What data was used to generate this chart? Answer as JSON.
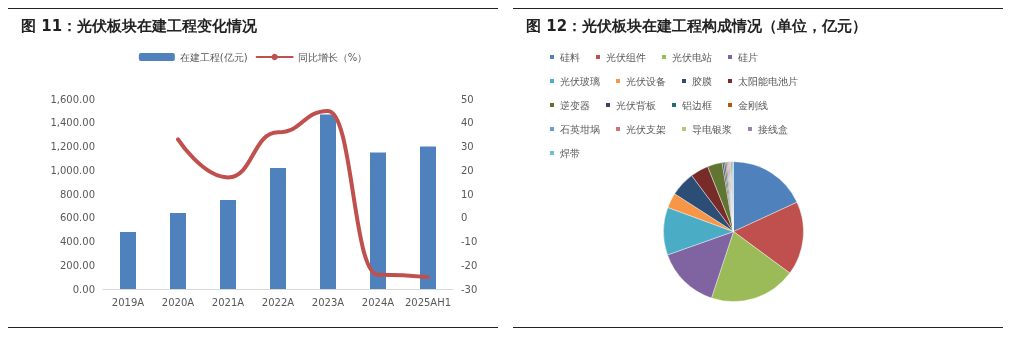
{
  "chart_data": [
    {
      "type": "bar",
      "title": "图 11：光伏板块在建工程变化情况",
      "categories": [
        "2019A",
        "2020A",
        "2021A",
        "2022A",
        "2023A",
        "2024A",
        "2025AH1"
      ],
      "series": [
        {
          "name": "在建工程(亿元)",
          "type": "bar",
          "color": "#4f81bd",
          "values": [
            480,
            640,
            750,
            1020,
            1470,
            1150,
            1200
          ]
        },
        {
          "name": "同比增长（%）",
          "type": "line",
          "axis": "y2",
          "color": "#c0504d",
          "values": [
            null,
            33,
            17,
            36,
            45,
            -24,
            -25
          ]
        }
      ],
      "ylim": [
        0,
        1600
      ],
      "yticks": [
        {
          "value": 0,
          "label": "0.00"
        },
        {
          "value": 200,
          "label": "200.00"
        },
        {
          "value": 400,
          "label": "400.00"
        },
        {
          "value": 600,
          "label": "600.00"
        },
        {
          "value": 800,
          "label": "800.00"
        },
        {
          "value": 1000,
          "label": "1,000.00"
        },
        {
          "value": 1200,
          "label": "1,200.00"
        },
        {
          "value": 1400,
          "label": "1,400.00"
        },
        {
          "value": 1600,
          "label": "1,600.00"
        }
      ],
      "y2lim": [
        -30,
        50
      ],
      "y2ticks": [
        -30,
        -20,
        -10,
        0,
        10,
        20,
        30,
        40,
        50
      ],
      "legend": "top",
      "marker": "none"
    },
    {
      "type": "pie",
      "title": "图 12：光伏板块在建工程构成情况（单位，亿元）",
      "categories": [
        "硅料",
        "光伏组件",
        "光伏电站",
        "硅片",
        "光伏玻璃",
        "光伏设备",
        "胶膜",
        "太阳能电池片",
        "逆变器",
        "光伏背板",
        "铝边框",
        "金刚线",
        "石英坩埚",
        "光伏支架",
        "导电银浆",
        "接线盒",
        "焊带"
      ],
      "values": [
        18.1,
        17,
        20,
        14.5,
        11,
        3.5,
        5.7,
        4.2,
        3.4,
        0.4,
        0.4,
        0.3,
        0.3,
        0.3,
        0.3,
        0.3,
        0.3
      ],
      "colors": [
        "#4f81bd",
        "#c0504d",
        "#9bbb59",
        "#8064a2",
        "#4bacc6",
        "#f79646",
        "#2c4d75",
        "#772c2a",
        "#5f7530",
        "#4d3b62",
        "#276a7c",
        "#b65708",
        "#729aca",
        "#cd7371",
        "#afc97a",
        "#9983b5",
        "#6fbdd3"
      ],
      "legend": "top"
    }
  ]
}
